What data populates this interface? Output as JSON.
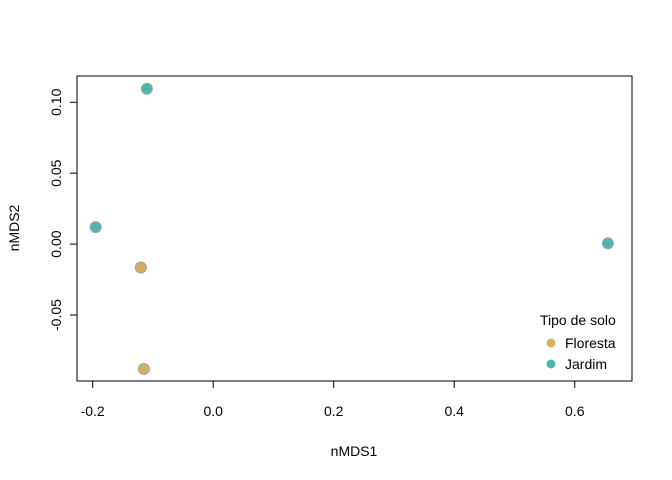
{
  "chart_data": {
    "type": "scatter",
    "xlabel": "nMDS1",
    "ylabel": "nMDS2",
    "xlim": [
      -0.226,
      0.695
    ],
    "ylim": [
      -0.0965,
      0.1185
    ],
    "xticks": [
      -0.2,
      0.0,
      0.2,
      0.4,
      0.6
    ],
    "xtick_labels": [
      "-0.2",
      "0.0",
      "0.2",
      "0.4",
      "0.6"
    ],
    "yticks": [
      -0.05,
      0.0,
      0.05,
      0.1
    ],
    "ytick_labels": [
      "-0.05",
      "0.00",
      "0.05",
      "0.10"
    ],
    "grid": false,
    "legend": {
      "title": "Tipo de solo",
      "position": "bottom-right"
    },
    "series": [
      {
        "name": "Floresta",
        "color": "#D4B05E",
        "points": [
          {
            "x": -0.12,
            "y": -0.0165
          },
          {
            "x": -0.115,
            "y": -0.088
          }
        ]
      },
      {
        "name": "Jardim",
        "color": "#4DB6AC",
        "points": [
          {
            "x": -0.11,
            "y": 0.1095
          },
          {
            "x": -0.195,
            "y": 0.012
          },
          {
            "x": 0.655,
            "y": 0.0005
          }
        ]
      }
    ]
  }
}
